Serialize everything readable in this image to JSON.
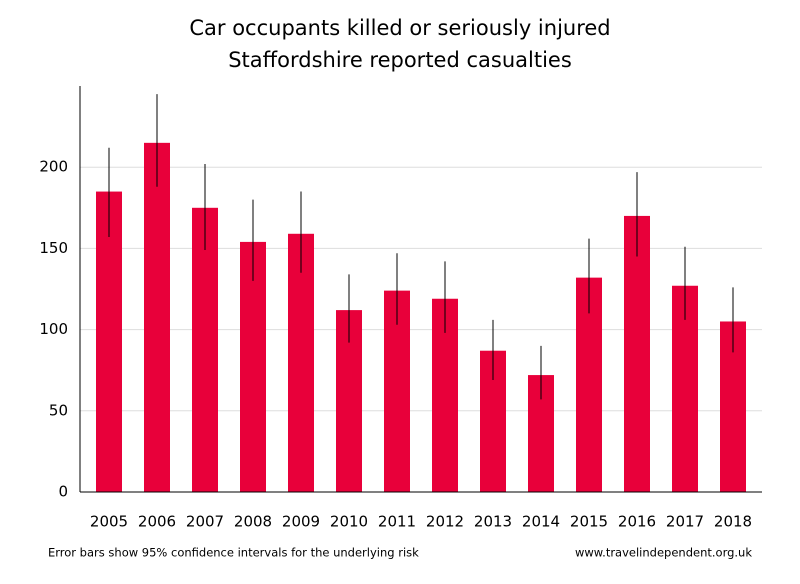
{
  "chart_data": {
    "type": "bar",
    "title": [
      "Car occupants killed or seriously injured",
      "Staffordshire reported casualties"
    ],
    "categories": [
      "2005",
      "2006",
      "2007",
      "2008",
      "2009",
      "2010",
      "2011",
      "2012",
      "2013",
      "2014",
      "2015",
      "2016",
      "2017",
      "2018"
    ],
    "values": [
      185,
      215,
      175,
      154,
      159,
      112,
      124,
      119,
      87,
      72,
      132,
      170,
      127,
      105
    ],
    "error_lower": [
      157,
      188,
      149,
      130,
      135,
      92,
      103,
      98,
      69,
      57,
      110,
      145,
      106,
      86
    ],
    "error_upper": [
      212,
      245,
      202,
      180,
      185,
      134,
      147,
      142,
      106,
      90,
      156,
      197,
      151,
      126
    ],
    "color": "#e8003a",
    "ylim": [
      0,
      250
    ],
    "yticks": [
      0,
      50,
      100,
      150,
      200
    ],
    "grid": true,
    "note": "Error bars show 95% confidence intervals for the underlying risk",
    "source": "www.travelindependent.org.uk"
  }
}
